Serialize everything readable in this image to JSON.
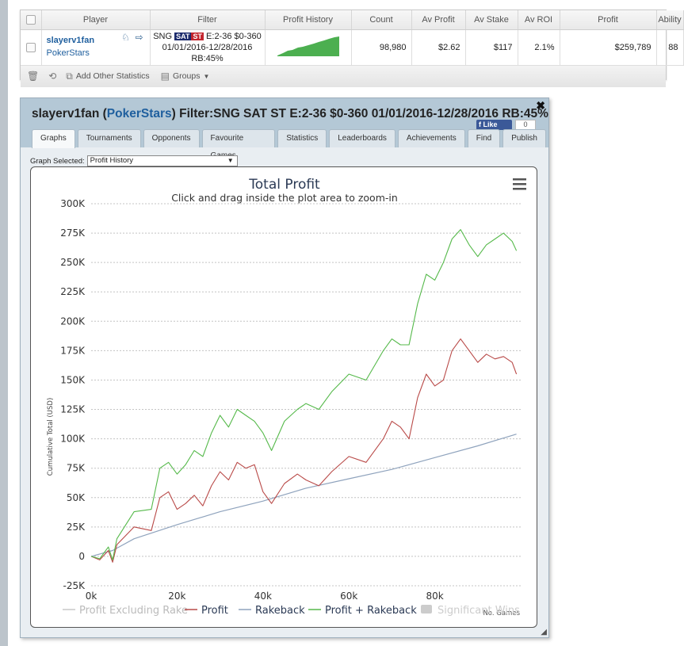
{
  "results_table": {
    "headers": [
      "Player",
      "Filter",
      "Profit History",
      "Count",
      "Av Profit",
      "Av Stake",
      "Av ROI",
      "Profit",
      "Ability"
    ],
    "row": {
      "player": "slayerv1fan",
      "site": "PokerStars",
      "filter_prefix": "SNG",
      "filter_tag_sat": "SAT",
      "filter_tag_st": "ST",
      "filter_line1_rest": "E:2-36 $0-360",
      "filter_line2": "01/01/2016-12/28/2016 RB:45%",
      "count": "98,980",
      "av_profit": "$2.62",
      "av_stake": "$117",
      "av_roi": "2.1%",
      "profit": "$259,789",
      "ability": "88"
    },
    "toolbar": {
      "add_other_statistics": "Add Other Statistics",
      "groups": "Groups"
    }
  },
  "popup": {
    "title_player": "slayerv1fan",
    "title_open": " (",
    "title_site": "PokerStars",
    "title_rest": ") Filter:SNG SAT ST E:2-36 $0-360 01/01/2016-12/28/2016 RB:45%",
    "like_label": "Like",
    "like_count": "0",
    "tabs": [
      "Graphs",
      "Tournaments",
      "Opponents",
      "Favourite Games",
      "Statistics",
      "Leaderboards",
      "Achievements",
      "Find",
      "Publish"
    ],
    "active_tab": "Graphs",
    "graph_selected_label": "Graph Selected:",
    "graph_selected_value": "Profit History"
  },
  "chart_data": {
    "type": "line",
    "title": "Total Profit",
    "subtitle": "Click and drag inside the plot area to zoom-in",
    "xlabel": "No. Games",
    "ylabel": "Cumulative Total (USD)",
    "xlim": [
      0,
      100000
    ],
    "ylim": [
      -25000,
      300000
    ],
    "x_ticks": [
      "0k",
      "20k",
      "40k",
      "60k",
      "80k"
    ],
    "y_ticks": [
      "-25K",
      "0",
      "25K",
      "50K",
      "75K",
      "100K",
      "125K",
      "150K",
      "175K",
      "200K",
      "225K",
      "250K",
      "275K",
      "300K"
    ],
    "grid": true,
    "legend_position": "bottom",
    "colors": {
      "profit": "#b94a48",
      "rakeback": "#8fa3bd",
      "profit_plus_rakeback": "#55b94a",
      "profit_excluding_rake": "#c8c8c8",
      "significant": "#cccccc"
    },
    "legend": [
      "Profit Excluding Rake",
      "Profit",
      "Rakeback",
      "Profit + Rakeback",
      "Significant Wins"
    ],
    "series": [
      {
        "name": "Profit",
        "x": [
          0,
          2000,
          4000,
          5000,
          6000,
          10000,
          14000,
          16000,
          18000,
          20000,
          22000,
          24000,
          26000,
          28000,
          30000,
          32000,
          34000,
          36000,
          38000,
          40000,
          42000,
          45000,
          48000,
          50000,
          53000,
          56000,
          60000,
          64000,
          68000,
          70000,
          72000,
          74000,
          76000,
          78000,
          80000,
          82000,
          84000,
          86000,
          88000,
          90000,
          92000,
          94000,
          96000,
          98000,
          99000
        ],
        "y": [
          0,
          -3000,
          5000,
          -5000,
          10000,
          25000,
          22000,
          50000,
          55000,
          40000,
          45000,
          52000,
          43000,
          60000,
          72000,
          65000,
          80000,
          75000,
          78000,
          55000,
          45000,
          62000,
          70000,
          65000,
          60000,
          72000,
          85000,
          80000,
          100000,
          115000,
          110000,
          100000,
          135000,
          155000,
          145000,
          150000,
          175000,
          185000,
          175000,
          165000,
          172000,
          168000,
          170000,
          165000,
          155000
        ]
      },
      {
        "name": "Rakeback",
        "x": [
          0,
          5000,
          10000,
          20000,
          30000,
          40000,
          50000,
          60000,
          70000,
          80000,
          90000,
          99000
        ],
        "y": [
          0,
          5000,
          15000,
          27000,
          38000,
          47000,
          58000,
          66000,
          74000,
          84000,
          94000,
          104000
        ]
      },
      {
        "name": "Profit + Rakeback",
        "x": [
          0,
          2000,
          4000,
          5000,
          6000,
          10000,
          14000,
          16000,
          18000,
          20000,
          22000,
          24000,
          26000,
          28000,
          30000,
          32000,
          34000,
          36000,
          38000,
          40000,
          42000,
          45000,
          48000,
          50000,
          53000,
          56000,
          60000,
          64000,
          68000,
          70000,
          72000,
          74000,
          76000,
          78000,
          80000,
          82000,
          84000,
          86000,
          88000,
          90000,
          92000,
          94000,
          96000,
          98000,
          99000
        ],
        "y": [
          0,
          -2000,
          8000,
          -3000,
          15000,
          38000,
          40000,
          75000,
          80000,
          70000,
          78000,
          90000,
          85000,
          105000,
          120000,
          110000,
          125000,
          120000,
          115000,
          105000,
          90000,
          115000,
          125000,
          130000,
          125000,
          140000,
          155000,
          150000,
          175000,
          185000,
          180000,
          180000,
          215000,
          240000,
          235000,
          250000,
          270000,
          278000,
          265000,
          255000,
          265000,
          270000,
          275000,
          268000,
          260000
        ]
      }
    ]
  }
}
